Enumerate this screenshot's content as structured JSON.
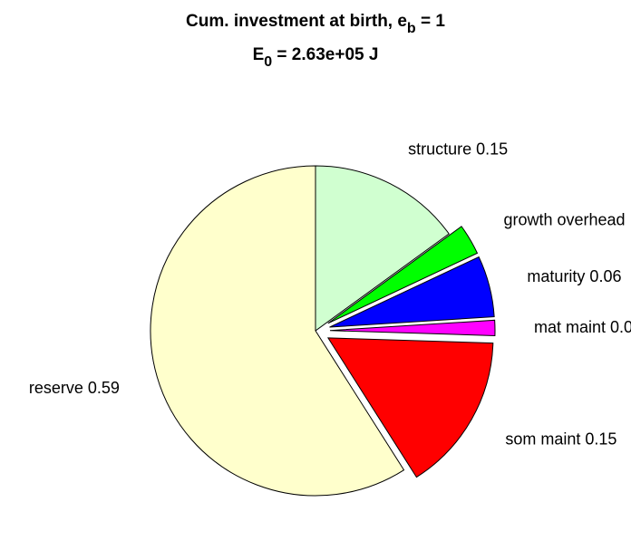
{
  "chart_data": {
    "type": "pie",
    "title_line1": {
      "main": "Cum. investment at birth, e",
      "sub": "b",
      "tail": " = 1"
    },
    "title_line2": {
      "main": "E",
      "sub": "0",
      "tail": " = 2.63e+05 J"
    },
    "start_angle_deg": 90,
    "direction": "clockwise",
    "slices": [
      {
        "name": "structure",
        "value": 0.15,
        "label": "structure 0.15",
        "color": "#d0ffd0",
        "exploded": false
      },
      {
        "name": "growth overhead",
        "value": 0.03,
        "label": "growth overhead",
        "color": "#00ff00",
        "exploded": true
      },
      {
        "name": "maturity",
        "value": 0.06,
        "label": "maturity 0.06",
        "color": "#0000ff",
        "exploded": true
      },
      {
        "name": "mat maint",
        "value": 0.015,
        "label": "mat maint 0.0",
        "color": "#ff00ff",
        "exploded": true
      },
      {
        "name": "som maint",
        "value": 0.155,
        "label": "som maint 0.15",
        "color": "#ff0000",
        "exploded": true
      },
      {
        "name": "reserve",
        "value": 0.59,
        "label": "reserve 0.59",
        "color": "#ffffcc",
        "exploded": false
      }
    ]
  }
}
